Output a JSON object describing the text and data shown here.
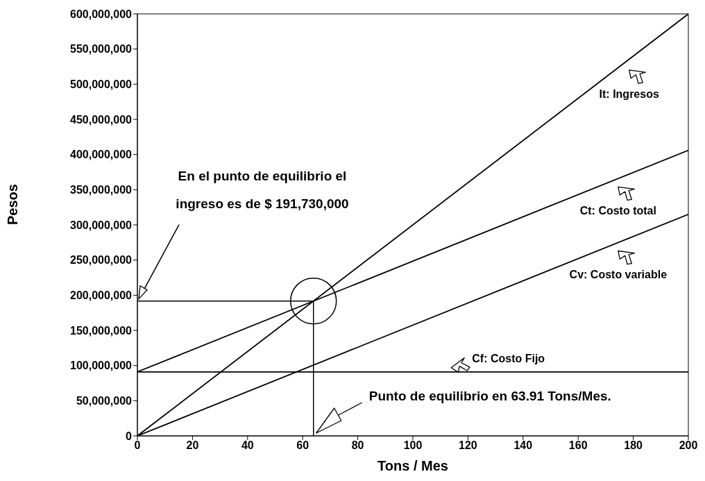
{
  "chart_data": {
    "type": "line",
    "xlabel": "Tons / Mes",
    "ylabel": "Pesos",
    "x": [
      0,
      200
    ],
    "xlim": [
      0,
      200
    ],
    "xticks": [
      0,
      20,
      40,
      60,
      80,
      100,
      120,
      140,
      160,
      180,
      200
    ],
    "ylim": [
      0,
      600000000
    ],
    "yticks": [
      0,
      {
        "value": 50000000,
        "label": "50,000,000"
      },
      {
        "value": 100000000,
        "label": "100,000,000"
      },
      {
        "value": 150000000,
        "label": "150,000,000"
      },
      {
        "value": 200000000,
        "label": "200,000,000"
      },
      {
        "value": 250000000,
        "label": "250,000,000"
      },
      {
        "value": 300000000,
        "label": "300,000,000"
      },
      {
        "value": 350000000,
        "label": "350,000,000"
      },
      {
        "value": 400000000,
        "label": "400,000,000"
      },
      {
        "value": 450000000,
        "label": "450,000,000"
      },
      {
        "value": 500000000,
        "label": "500,000,000"
      },
      {
        "value": 550000000,
        "label": "550,000,000"
      },
      {
        "value": 600000000,
        "label": "600,000,000"
      }
    ],
    "marker": "none",
    "line_style": "solid",
    "legend": "right",
    "series": [
      {
        "name": "It: Ingresos",
        "color": "#000000",
        "values": [
          0,
          600000000
        ]
      },
      {
        "name": "Ct: Costo total",
        "color": "#000000",
        "values": [
          91000000,
          406000000
        ]
      },
      {
        "name": "Cv: Costo variable",
        "color": "#000000",
        "values": [
          0,
          315000000
        ]
      },
      {
        "name": "Cf: Costo Fijo",
        "color": "#000000",
        "values": [
          91000000,
          91000000
        ]
      }
    ],
    "ref_lines": [
      {
        "axis": "x",
        "value": 63.91,
        "color": "#000000"
      },
      {
        "axis": "y",
        "value": 191730000,
        "color": "#000000"
      }
    ],
    "annotations": [
      "En el punto de equilibrio el ingreso es de $ 191,730,000",
      "Punto de equilibrio en 63.91 Tons/Mes."
    ]
  }
}
